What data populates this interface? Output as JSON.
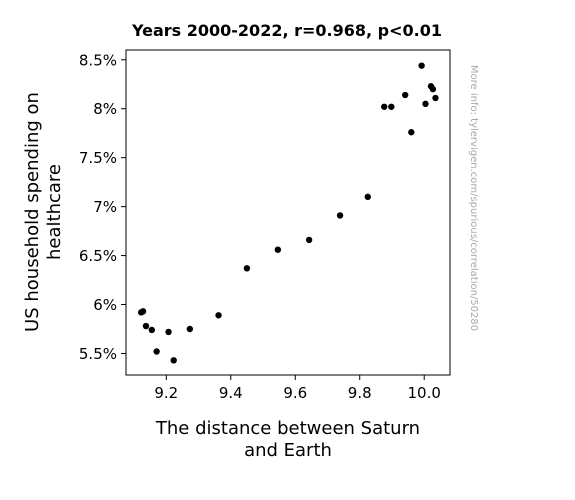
{
  "chart_data": {
    "type": "scatter",
    "title": "Years 2000-2022, r=0.968, p<0.01",
    "xlabel": [
      "The distance between Saturn",
      "and Earth"
    ],
    "ylabel": [
      "US household spending on",
      "healthcare"
    ],
    "watermark": "More info: tylervigen.com/spurious/correlation/50280",
    "xlim": [
      9.075,
      10.08
    ],
    "ylim": [
      5.28,
      8.6
    ],
    "xticks": [
      9.2,
      9.4,
      9.6,
      9.8,
      10.0
    ],
    "xtick_labels": [
      "9.2",
      "9.4",
      "9.6",
      "9.8",
      "10.0"
    ],
    "yticks": [
      5.5,
      6.0,
      6.5,
      7.0,
      7.5,
      8.0,
      8.5
    ],
    "ytick_labels": [
      "5.5%",
      "6%",
      "6.5%",
      "7%",
      "7.5%",
      "8%",
      "8.5%"
    ],
    "grid": false,
    "marker_color": "#000000",
    "points": [
      {
        "x": 9.122,
        "y": 5.92
      },
      {
        "x": 9.128,
        "y": 5.93
      },
      {
        "x": 9.137,
        "y": 5.78
      },
      {
        "x": 9.155,
        "y": 5.74
      },
      {
        "x": 9.17,
        "y": 5.52
      },
      {
        "x": 9.207,
        "y": 5.72
      },
      {
        "x": 9.223,
        "y": 5.43
      },
      {
        "x": 9.273,
        "y": 5.75
      },
      {
        "x": 9.362,
        "y": 5.89
      },
      {
        "x": 9.45,
        "y": 6.37
      },
      {
        "x": 9.546,
        "y": 6.56
      },
      {
        "x": 9.643,
        "y": 6.66
      },
      {
        "x": 9.739,
        "y": 6.91
      },
      {
        "x": 9.825,
        "y": 7.1
      },
      {
        "x": 9.876,
        "y": 8.02
      },
      {
        "x": 9.898,
        "y": 8.02
      },
      {
        "x": 9.941,
        "y": 8.14
      },
      {
        "x": 9.96,
        "y": 7.76
      },
      {
        "x": 9.992,
        "y": 8.44
      },
      {
        "x": 10.004,
        "y": 8.05
      },
      {
        "x": 10.021,
        "y": 8.23
      },
      {
        "x": 10.027,
        "y": 8.2
      },
      {
        "x": 10.035,
        "y": 8.11
      }
    ]
  }
}
